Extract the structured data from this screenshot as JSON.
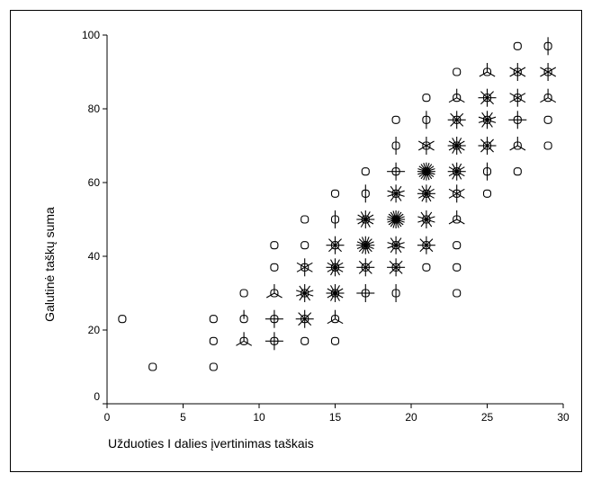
{
  "chart_data": {
    "type": "scatter",
    "title": "",
    "xlabel": "Užduoties I dalies įvertinimas taškais",
    "ylabel": "Galutinė taškų suma",
    "xlim": [
      0,
      30
    ],
    "ylim": [
      0,
      100
    ],
    "xticks": [
      0,
      5,
      10,
      15,
      20,
      25,
      30
    ],
    "yticks": [
      0,
      20,
      40,
      60,
      80,
      100
    ],
    "grid": false,
    "marker": "sunflower",
    "note_fields": "points are [x, y, petals]; petals = sunflower rays (0 = single observation)",
    "points": [
      [
        1,
        23,
        0
      ],
      [
        3,
        10,
        0
      ],
      [
        7,
        23,
        0
      ],
      [
        7,
        17,
        0
      ],
      [
        7,
        10,
        0
      ],
      [
        9,
        30,
        0
      ],
      [
        9,
        23,
        1
      ],
      [
        9,
        17,
        3
      ],
      [
        11,
        43,
        0
      ],
      [
        11,
        37,
        0
      ],
      [
        11,
        30,
        3
      ],
      [
        11,
        23,
        4
      ],
      [
        11,
        17,
        4
      ],
      [
        13,
        50,
        0
      ],
      [
        13,
        43,
        0
      ],
      [
        13,
        37,
        6
      ],
      [
        13,
        30,
        10
      ],
      [
        13,
        23,
        8
      ],
      [
        13,
        17,
        0
      ],
      [
        15,
        57,
        0
      ],
      [
        15,
        50,
        2
      ],
      [
        15,
        43,
        8
      ],
      [
        15,
        37,
        12
      ],
      [
        15,
        30,
        12
      ],
      [
        15,
        23,
        3
      ],
      [
        15,
        17,
        0
      ],
      [
        17,
        63,
        0
      ],
      [
        17,
        57,
        2
      ],
      [
        17,
        50,
        12
      ],
      [
        17,
        43,
        16
      ],
      [
        17,
        37,
        8
      ],
      [
        17,
        30,
        4
      ],
      [
        19,
        77,
        0
      ],
      [
        19,
        70,
        2
      ],
      [
        19,
        63,
        4
      ],
      [
        19,
        57,
        10
      ],
      [
        19,
        50,
        20
      ],
      [
        19,
        43,
        10
      ],
      [
        19,
        37,
        8
      ],
      [
        19,
        30,
        2
      ],
      [
        21,
        83,
        0
      ],
      [
        21,
        77,
        2
      ],
      [
        21,
        70,
        6
      ],
      [
        21,
        63,
        20
      ],
      [
        21,
        57,
        12
      ],
      [
        21,
        50,
        10
      ],
      [
        21,
        43,
        8
      ],
      [
        21,
        37,
        0
      ],
      [
        23,
        90,
        0
      ],
      [
        23,
        83,
        3
      ],
      [
        23,
        77,
        8
      ],
      [
        23,
        70,
        12
      ],
      [
        23,
        63,
        12
      ],
      [
        23,
        57,
        6
      ],
      [
        23,
        50,
        3
      ],
      [
        23,
        43,
        0
      ],
      [
        23,
        37,
        0
      ],
      [
        23,
        30,
        0
      ],
      [
        25,
        90,
        3
      ],
      [
        25,
        83,
        8
      ],
      [
        25,
        77,
        10
      ],
      [
        25,
        70,
        8
      ],
      [
        25,
        63,
        2
      ],
      [
        25,
        57,
        0
      ],
      [
        27,
        97,
        0
      ],
      [
        27,
        90,
        6
      ],
      [
        27,
        83,
        6
      ],
      [
        27,
        77,
        4
      ],
      [
        27,
        70,
        3
      ],
      [
        27,
        63,
        0
      ],
      [
        29,
        97,
        2
      ],
      [
        29,
        90,
        6
      ],
      [
        29,
        83,
        3
      ],
      [
        29,
        77,
        0
      ],
      [
        29,
        70,
        0
      ]
    ]
  }
}
